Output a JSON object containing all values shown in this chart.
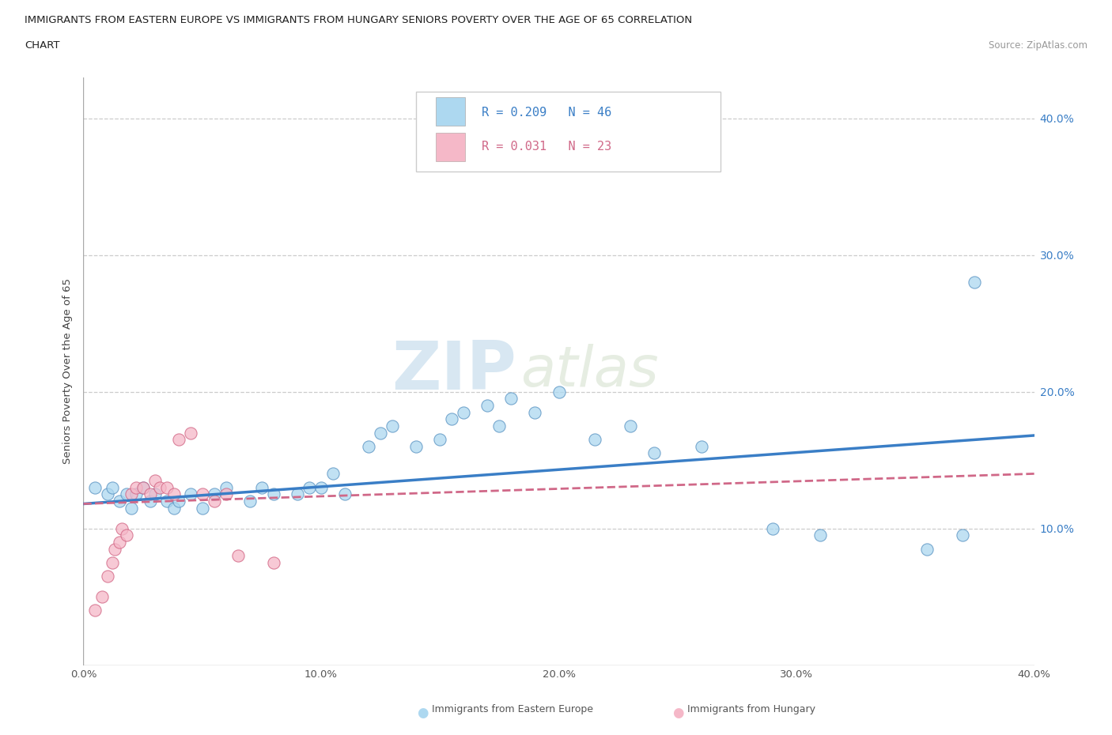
{
  "title_line1": "IMMIGRANTS FROM EASTERN EUROPE VS IMMIGRANTS FROM HUNGARY SENIORS POVERTY OVER THE AGE OF 65 CORRELATION",
  "title_line2": "CHART",
  "source_text": "Source: ZipAtlas.com",
  "watermark_zip": "ZIP",
  "watermark_atlas": "atlas",
  "ylabel": "Seniors Poverty Over the Age of 65",
  "xlim": [
    0.0,
    0.4
  ],
  "ylim": [
    0.0,
    0.43
  ],
  "xticks": [
    0.0,
    0.1,
    0.2,
    0.3,
    0.4
  ],
  "yticks": [
    0.1,
    0.2,
    0.3,
    0.4
  ],
  "xticklabels": [
    "0.0%",
    "10.0%",
    "20.0%",
    "30.0%",
    "40.0%"
  ],
  "yticklabels": [
    "10.0%",
    "20.0%",
    "30.0%",
    "40.0%"
  ],
  "blue_R": 0.209,
  "blue_N": 46,
  "pink_R": 0.031,
  "pink_N": 23,
  "blue_color": "#ADD8F0",
  "pink_color": "#F5B8C8",
  "blue_edge_color": "#5590C0",
  "pink_edge_color": "#D06080",
  "blue_line_color": "#3A7EC6",
  "pink_line_color": "#D06888",
  "grid_color": "#CCCCCC",
  "bg_color": "#FFFFFF",
  "blue_scatter_x": [
    0.005,
    0.01,
    0.012,
    0.015,
    0.018,
    0.02,
    0.022,
    0.025,
    0.028,
    0.03,
    0.035,
    0.038,
    0.04,
    0.045,
    0.05,
    0.055,
    0.06,
    0.07,
    0.075,
    0.08,
    0.09,
    0.095,
    0.1,
    0.105,
    0.11,
    0.12,
    0.125,
    0.13,
    0.14,
    0.15,
    0.155,
    0.16,
    0.17,
    0.175,
    0.18,
    0.19,
    0.2,
    0.215,
    0.23,
    0.24,
    0.26,
    0.29,
    0.31,
    0.355,
    0.37,
    0.375
  ],
  "blue_scatter_y": [
    0.13,
    0.125,
    0.13,
    0.12,
    0.125,
    0.115,
    0.125,
    0.13,
    0.12,
    0.125,
    0.12,
    0.115,
    0.12,
    0.125,
    0.115,
    0.125,
    0.13,
    0.12,
    0.13,
    0.125,
    0.125,
    0.13,
    0.13,
    0.14,
    0.125,
    0.16,
    0.17,
    0.175,
    0.16,
    0.165,
    0.18,
    0.185,
    0.19,
    0.175,
    0.195,
    0.185,
    0.2,
    0.165,
    0.175,
    0.155,
    0.16,
    0.1,
    0.095,
    0.085,
    0.095,
    0.28
  ],
  "pink_scatter_x": [
    0.005,
    0.008,
    0.01,
    0.012,
    0.013,
    0.015,
    0.016,
    0.018,
    0.02,
    0.022,
    0.025,
    0.028,
    0.03,
    0.032,
    0.035,
    0.038,
    0.04,
    0.045,
    0.05,
    0.055,
    0.06,
    0.065,
    0.08
  ],
  "pink_scatter_y": [
    0.04,
    0.05,
    0.065,
    0.075,
    0.085,
    0.09,
    0.1,
    0.095,
    0.125,
    0.13,
    0.13,
    0.125,
    0.135,
    0.13,
    0.13,
    0.125,
    0.165,
    0.17,
    0.125,
    0.12,
    0.125,
    0.08,
    0.075
  ],
  "bottom_legend_blue": "Immigrants from Eastern Europe",
  "bottom_legend_pink": "Immigrants from Hungary"
}
